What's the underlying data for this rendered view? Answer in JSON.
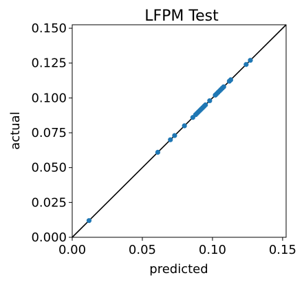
{
  "chart_data": {
    "type": "scatter",
    "title": "LFPM Test",
    "xlabel": "predicted",
    "ylabel": "actual",
    "xlim": [
      0.0,
      0.1525
    ],
    "ylim": [
      0.0,
      0.1525
    ],
    "x_ticks": [
      0.0,
      0.05,
      0.1,
      0.15
    ],
    "x_tick_labels": [
      "0.00",
      "0.05",
      "0.10",
      "0.15"
    ],
    "y_ticks": [
      0.0,
      0.025,
      0.05,
      0.075,
      0.1,
      0.125,
      0.15
    ],
    "y_tick_labels": [
      "0.000",
      "0.025",
      "0.050",
      "0.075",
      "0.100",
      "0.125",
      "0.150"
    ],
    "grid": false,
    "reference_line": {
      "from": [
        0.0,
        0.0
      ],
      "to": [
        0.1525,
        0.1525
      ],
      "color": "#000000"
    },
    "point_color": "#1f77b4",
    "points": [
      {
        "x": 0.012,
        "y": 0.012
      },
      {
        "x": 0.061,
        "y": 0.061
      },
      {
        "x": 0.07,
        "y": 0.07
      },
      {
        "x": 0.073,
        "y": 0.073
      },
      {
        "x": 0.08,
        "y": 0.08
      },
      {
        "x": 0.086,
        "y": 0.086
      },
      {
        "x": 0.088,
        "y": 0.088
      },
      {
        "x": 0.089,
        "y": 0.089
      },
      {
        "x": 0.09,
        "y": 0.09
      },
      {
        "x": 0.091,
        "y": 0.091
      },
      {
        "x": 0.092,
        "y": 0.092
      },
      {
        "x": 0.093,
        "y": 0.093
      },
      {
        "x": 0.094,
        "y": 0.094
      },
      {
        "x": 0.095,
        "y": 0.095
      },
      {
        "x": 0.098,
        "y": 0.098
      },
      {
        "x": 0.102,
        "y": 0.102
      },
      {
        "x": 0.103,
        "y": 0.103
      },
      {
        "x": 0.104,
        "y": 0.104
      },
      {
        "x": 0.105,
        "y": 0.105
      },
      {
        "x": 0.106,
        "y": 0.106
      },
      {
        "x": 0.107,
        "y": 0.107
      },
      {
        "x": 0.108,
        "y": 0.108
      },
      {
        "x": 0.112,
        "y": 0.112
      },
      {
        "x": 0.113,
        "y": 0.113
      },
      {
        "x": 0.124,
        "y": 0.124
      },
      {
        "x": 0.127,
        "y": 0.127
      }
    ]
  }
}
